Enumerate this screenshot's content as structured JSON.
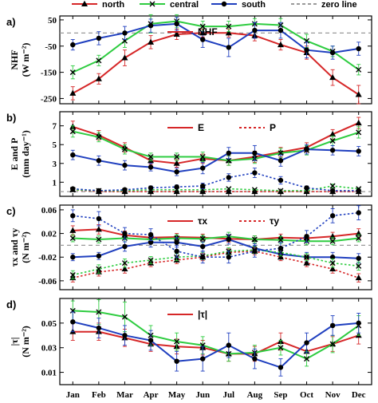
{
  "months": [
    "Jan",
    "Feb",
    "Mar",
    "Apr",
    "May",
    "Jun",
    "Jul",
    "Aug",
    "Sep",
    "Oct",
    "Nov",
    "Dec"
  ],
  "legend": [
    {
      "name": "north",
      "color": "#d62728",
      "marker": "triangle",
      "dash": false
    },
    {
      "name": "central",
      "color": "#2ecc40",
      "marker": "x",
      "dash": false
    },
    {
      "name": "south",
      "color": "#1f3fbf",
      "marker": "circle",
      "dash": false
    },
    {
      "name": "zero line",
      "color": "#999999",
      "marker": "none",
      "dash": true
    }
  ],
  "chart_data": [
    {
      "type": "line",
      "panel_label": "a)",
      "ylabel": "NHF",
      "yunit": "(W m⁻²)",
      "ylim": [
        -270,
        65
      ],
      "yticks": [
        50,
        -50,
        -150,
        -250
      ],
      "zero_line": 0,
      "inset_legend": [
        {
          "name": "NHF",
          "color": "#d62728",
          "dash": false
        }
      ],
      "series": [
        {
          "name": "north",
          "color": "#d62728",
          "marker": "triangle",
          "dash": false,
          "values": [
            -230,
            -175,
            -95,
            -35,
            -5,
            0,
            0,
            -10,
            -45,
            -75,
            -170,
            -235
          ],
          "err": [
            25,
            20,
            30,
            25,
            20,
            15,
            15,
            20,
            20,
            25,
            30,
            35
          ]
        },
        {
          "name": "central",
          "color": "#2ecc40",
          "marker": "x",
          "dash": false,
          "values": [
            -150,
            -105,
            -30,
            35,
            45,
            25,
            25,
            35,
            30,
            -30,
            -70,
            -140
          ],
          "err": [
            25,
            20,
            25,
            35,
            25,
            20,
            20,
            20,
            25,
            25,
            20,
            20
          ]
        },
        {
          "name": "south",
          "color": "#1f3fbf",
          "marker": "circle",
          "dash": false,
          "values": [
            -45,
            -20,
            0,
            28,
            35,
            -25,
            -55,
            10,
            10,
            -65,
            -75,
            -60
          ],
          "err": [
            20,
            25,
            25,
            25,
            25,
            30,
            35,
            30,
            30,
            30,
            25,
            25
          ]
        }
      ]
    },
    {
      "type": "line",
      "panel_label": "b)",
      "ylabel": "E and P",
      "yunit": "(mm day⁻¹)",
      "ylim": [
        -0.5,
        8.5
      ],
      "yticks": [
        7,
        5,
        3,
        1
      ],
      "zero_line": 0,
      "inset_legend": [
        {
          "name": "E",
          "color": "#d62728",
          "dash": false
        },
        {
          "name": "P",
          "color": "#d62728",
          "dash": true
        }
      ],
      "series": [
        {
          "name": "north E",
          "color": "#d62728",
          "marker": "triangle",
          "dash": false,
          "values": [
            6.9,
            6.0,
            4.7,
            3.3,
            3.0,
            3.5,
            3.3,
            3.7,
            4.2,
            4.7,
            6.1,
            7.3
          ],
          "err": [
            0.6,
            0.5,
            0.5,
            0.4,
            0.4,
            0.5,
            0.5,
            0.6,
            0.5,
            0.5,
            0.5,
            0.6
          ]
        },
        {
          "name": "central E",
          "color": "#2ecc40",
          "marker": "x",
          "dash": false,
          "values": [
            6.4,
            5.8,
            4.5,
            3.7,
            3.7,
            3.7,
            3.3,
            3.5,
            4.1,
            4.4,
            5.4,
            6.3
          ],
          "err": [
            0.6,
            0.5,
            0.5,
            0.4,
            0.4,
            0.5,
            0.5,
            0.5,
            0.5,
            0.5,
            0.5,
            0.6
          ]
        },
        {
          "name": "south E",
          "color": "#1f3fbf",
          "marker": "circle",
          "dash": false,
          "values": [
            3.9,
            3.3,
            2.8,
            2.6,
            2.1,
            2.5,
            4.1,
            4.1,
            3.3,
            4.5,
            4.4,
            4.3
          ],
          "err": [
            0.5,
            0.5,
            0.5,
            0.4,
            0.4,
            0.6,
            0.6,
            0.8,
            0.6,
            0.5,
            0.5,
            0.5
          ]
        },
        {
          "name": "north P",
          "color": "#d62728",
          "marker": "triangle",
          "dash": true,
          "values": [
            0.2,
            0.0,
            0.0,
            0.0,
            0.0,
            0.0,
            0.0,
            0.0,
            0.0,
            0.0,
            0.0,
            0.0
          ],
          "err": [
            0.1,
            0.1,
            0.1,
            0.1,
            0.1,
            0.1,
            0.1,
            0.1,
            0.1,
            0.1,
            0.1,
            0.1
          ]
        },
        {
          "name": "central P",
          "color": "#2ecc40",
          "marker": "x",
          "dash": true,
          "values": [
            0.2,
            0.1,
            0.1,
            0.2,
            0.2,
            0.2,
            0.3,
            0.2,
            0.1,
            0.1,
            0.6,
            0.3
          ],
          "err": [
            0.1,
            0.1,
            0.1,
            0.1,
            0.1,
            0.1,
            0.1,
            0.1,
            0.1,
            0.1,
            0.2,
            0.1
          ]
        },
        {
          "name": "south P",
          "color": "#1f3fbf",
          "marker": "circle",
          "dash": true,
          "values": [
            0.3,
            0.1,
            0.2,
            0.4,
            0.5,
            0.6,
            1.5,
            2.0,
            1.2,
            0.4,
            0.1,
            0.1
          ],
          "err": [
            0.1,
            0.1,
            0.1,
            0.2,
            0.2,
            0.3,
            0.4,
            0.5,
            0.4,
            0.2,
            0.1,
            0.1
          ]
        }
      ]
    },
    {
      "type": "line",
      "panel_label": "c)",
      "ylabel": "τx and τy",
      "yunit": "(N m⁻²)",
      "ylim": [
        -0.075,
        0.068
      ],
      "yticks": [
        0.06,
        0.02,
        -0.02,
        -0.06
      ],
      "zero_line": 0,
      "inset_legend": [
        {
          "name": "τx",
          "color": "#d62728",
          "dash": false
        },
        {
          "name": "τy",
          "color": "#d62728",
          "dash": true
        }
      ],
      "series": [
        {
          "name": "north τx",
          "color": "#d62728",
          "marker": "triangle",
          "dash": false,
          "values": [
            0.025,
            0.027,
            0.017,
            0.013,
            0.014,
            0.013,
            0.011,
            0.01,
            0.013,
            0.012,
            0.015,
            0.02
          ],
          "err": [
            0.008,
            0.008,
            0.007,
            0.006,
            0.006,
            0.006,
            0.006,
            0.006,
            0.006,
            0.006,
            0.007,
            0.008
          ]
        },
        {
          "name": "central τx",
          "color": "#2ecc40",
          "marker": "x",
          "dash": false,
          "values": [
            0.012,
            0.01,
            0.012,
            0.01,
            0.012,
            0.011,
            0.015,
            0.01,
            0.009,
            0.007,
            0.007,
            0.012
          ],
          "err": [
            0.006,
            0.006,
            0.006,
            0.006,
            0.006,
            0.006,
            0.007,
            0.006,
            0.006,
            0.006,
            0.006,
            0.006
          ]
        },
        {
          "name": "south τx",
          "color": "#1f3fbf",
          "marker": "circle",
          "dash": false,
          "values": [
            -0.02,
            -0.018,
            -0.002,
            0.005,
            0.005,
            -0.002,
            0.01,
            -0.005,
            -0.015,
            -0.02,
            -0.02,
            -0.022
          ],
          "err": [
            0.006,
            0.006,
            0.008,
            0.008,
            0.008,
            0.008,
            0.008,
            0.008,
            0.008,
            0.008,
            0.008,
            0.008
          ]
        },
        {
          "name": "north τy",
          "color": "#d62728",
          "marker": "triangle",
          "dash": true,
          "values": [
            -0.055,
            -0.045,
            -0.04,
            -0.03,
            -0.025,
            -0.02,
            -0.012,
            -0.01,
            -0.02,
            -0.03,
            -0.04,
            -0.055
          ],
          "err": [
            0.007,
            0.007,
            0.007,
            0.006,
            0.006,
            0.006,
            0.006,
            0.006,
            0.006,
            0.006,
            0.007,
            0.007
          ]
        },
        {
          "name": "central τy",
          "color": "#2ecc40",
          "marker": "x",
          "dash": true,
          "values": [
            -0.05,
            -0.04,
            -0.03,
            -0.025,
            -0.02,
            -0.018,
            -0.01,
            -0.008,
            -0.012,
            -0.02,
            -0.03,
            -0.035
          ],
          "err": [
            0.007,
            0.007,
            0.007,
            0.006,
            0.006,
            0.006,
            0.006,
            0.006,
            0.006,
            0.006,
            0.007,
            0.007
          ]
        },
        {
          "name": "south τy",
          "color": "#1f3fbf",
          "marker": "circle",
          "dash": true,
          "values": [
            0.05,
            0.045,
            0.02,
            0.018,
            -0.01,
            -0.02,
            -0.02,
            -0.01,
            -0.005,
            0.015,
            0.05,
            0.055
          ],
          "err": [
            0.01,
            0.012,
            0.01,
            0.01,
            0.01,
            0.01,
            0.01,
            0.01,
            0.01,
            0.01,
            0.012,
            0.012
          ]
        }
      ]
    },
    {
      "type": "line",
      "panel_label": "d)",
      "ylabel": "|τ|",
      "yunit": "(N m⁻²)",
      "ylim": [
        0.0,
        0.07
      ],
      "yticks": [
        0.05,
        0.03,
        0.01
      ],
      "zero_line": null,
      "inset_legend": [
        {
          "name": "|τ|",
          "color": "#d62728",
          "dash": false
        }
      ],
      "series": [
        {
          "name": "north",
          "color": "#d62728",
          "marker": "triangle",
          "dash": false,
          "values": [
            0.043,
            0.043,
            0.038,
            0.033,
            0.031,
            0.03,
            0.025,
            0.025,
            0.035,
            0.027,
            0.033,
            0.04
          ],
          "err": [
            0.007,
            0.007,
            0.007,
            0.006,
            0.006,
            0.006,
            0.006,
            0.006,
            0.007,
            0.006,
            0.006,
            0.007
          ]
        },
        {
          "name": "central",
          "color": "#2ecc40",
          "marker": "x",
          "dash": false,
          "values": [
            0.06,
            0.059,
            0.055,
            0.04,
            0.035,
            0.032,
            0.025,
            0.026,
            0.03,
            0.021,
            0.033,
            0.048
          ],
          "err": [
            0.008,
            0.01,
            0.012,
            0.008,
            0.007,
            0.007,
            0.006,
            0.006,
            0.006,
            0.006,
            0.007,
            0.008
          ]
        },
        {
          "name": "south",
          "color": "#1f3fbf",
          "marker": "circle",
          "dash": false,
          "values": [
            0.051,
            0.046,
            0.04,
            0.036,
            0.019,
            0.021,
            0.032,
            0.021,
            0.014,
            0.034,
            0.048,
            0.05
          ],
          "err": [
            0.008,
            0.008,
            0.008,
            0.008,
            0.008,
            0.01,
            0.01,
            0.008,
            0.007,
            0.008,
            0.008,
            0.008
          ]
        }
      ]
    }
  ]
}
